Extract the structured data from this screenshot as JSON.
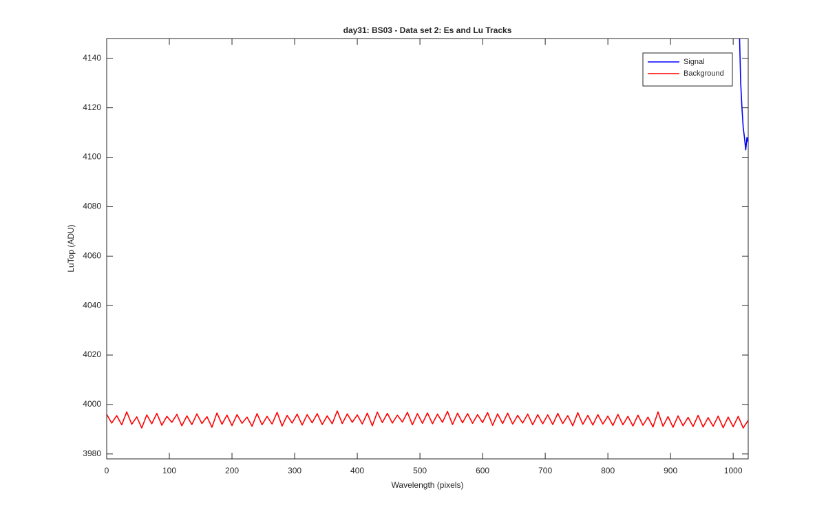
{
  "chart_data": {
    "type": "line",
    "title": "day31: BS03 - Data set 2: Es and Lu Tracks",
    "x_label": "Wavelength (pixels)",
    "y_label": "LuTop (ADU)",
    "xlim": [
      0,
      1024
    ],
    "ylim": [
      3978,
      4148
    ],
    "xticks": [
      0,
      100,
      200,
      300,
      400,
      500,
      600,
      700,
      800,
      900,
      1000
    ],
    "yticks": [
      3980,
      4000,
      4020,
      4040,
      4060,
      4080,
      4100,
      4120,
      4140
    ],
    "legend": "northeast",
    "series": [
      {
        "name": "Signal",
        "color": "#0000ff",
        "x": [
          1010,
          1012,
          1014,
          1016,
          1018,
          1020,
          1022,
          1024
        ],
        "values": [
          4150,
          4130,
          4120,
          4112,
          4108,
          4103,
          4108,
          4106
        ]
      },
      {
        "name": "Background",
        "color": "#ff0000",
        "x": [
          0,
          8,
          16,
          24,
          32,
          40,
          48,
          56,
          64,
          72,
          80,
          88,
          96,
          104,
          112,
          120,
          128,
          136,
          144,
          152,
          160,
          168,
          176,
          184,
          192,
          200,
          208,
          216,
          224,
          232,
          240,
          248,
          256,
          264,
          272,
          280,
          288,
          296,
          304,
          312,
          320,
          328,
          336,
          344,
          352,
          360,
          368,
          376,
          384,
          392,
          400,
          408,
          416,
          424,
          432,
          440,
          448,
          456,
          464,
          472,
          480,
          488,
          496,
          504,
          512,
          520,
          528,
          536,
          544,
          552,
          560,
          568,
          576,
          584,
          592,
          600,
          608,
          616,
          624,
          632,
          640,
          648,
          656,
          664,
          672,
          680,
          688,
          696,
          704,
          712,
          720,
          728,
          736,
          744,
          752,
          760,
          768,
          776,
          784,
          792,
          800,
          808,
          816,
          824,
          832,
          840,
          848,
          856,
          864,
          872,
          880,
          888,
          896,
          904,
          912,
          920,
          928,
          936,
          944,
          952,
          960,
          968,
          976,
          984,
          992,
          1000,
          1008,
          1016,
          1024
        ],
        "values": [
          3996,
          3992.5,
          3995.5,
          3991.8,
          3997,
          3992,
          3995,
          3990.5,
          3995.8,
          3992.2,
          3996.4,
          3991.6,
          3995.2,
          3992.8,
          3996,
          3991.4,
          3995.4,
          3991.9,
          3996.2,
          3992.3,
          3995.1,
          3990.8,
          3996.6,
          3992,
          3995.7,
          3991.5,
          3995.9,
          3992.4,
          3994.9,
          3991.2,
          3996.3,
          3991.8,
          3995.2,
          3992.1,
          3996.8,
          3991.3,
          3995.6,
          3992.5,
          3996.1,
          3991.7,
          3995.9,
          3992.6,
          3996.3,
          3991.9,
          3995.4,
          3992.2,
          3997.4,
          3992.3,
          3996.2,
          3992.8,
          3995.8,
          3992.1,
          3996.5,
          3991.4,
          3996.9,
          3992.7,
          3996.4,
          3992.5,
          3995.7,
          3992.9,
          3996.8,
          3991.8,
          3996.3,
          3992.4,
          3996.6,
          3992.2,
          3996.1,
          3992.8,
          3997.2,
          3991.9,
          3996.5,
          3992.6,
          3996.3,
          3992.4,
          3995.9,
          3992.7,
          3996.7,
          3991.6,
          3996.2,
          3992.3,
          3996.5,
          3992.1,
          3995.6,
          3992.5,
          3996.1,
          3991.8,
          3995.9,
          3992.2,
          3995.8,
          3991.9,
          3996.4,
          3992.3,
          3995.5,
          3991.4,
          3996.7,
          3992,
          3995.6,
          3991.7,
          3995.9,
          3992.1,
          3995.3,
          3991.5,
          3996,
          3991.8,
          3995.2,
          3991.3,
          3995.7,
          3991.6,
          3994.9,
          3990.9,
          3997,
          3991.2,
          3995.1,
          3990.8,
          3995.4,
          3991.4,
          3994.8,
          3991.1,
          3995.6,
          3990.9,
          3994.7,
          3991.2,
          3995.3,
          3990.6,
          3994.9,
          3991,
          3995.2,
          3990.5,
          3993.6
        ]
      }
    ]
  }
}
